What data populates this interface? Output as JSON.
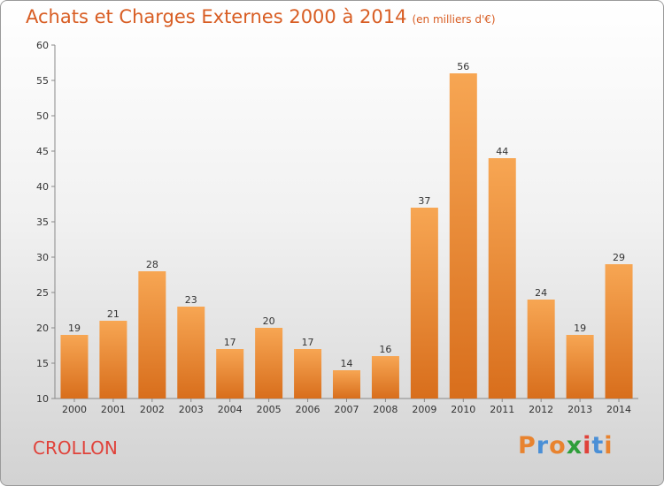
{
  "header": {
    "title": "Achats et Charges Externes 2000 à 2014",
    "unit": "(en milliers d'€)"
  },
  "footer": {
    "commune": "CROLLON",
    "logo": "Proxiti",
    "logo_colors": [
      "#e8832f",
      "#4a8fd6",
      "#e8832f",
      "#2e9e3a",
      "#e0423a",
      "#4a8fd6",
      "#e8832f"
    ]
  },
  "chart_data": {
    "type": "bar",
    "title": "Achats et Charges Externes 2000 à 2014",
    "subtitle": "(en milliers d'€)",
    "categories": [
      "2000",
      "2001",
      "2002",
      "2003",
      "2004",
      "2005",
      "2006",
      "2007",
      "2008",
      "2009",
      "2010",
      "2011",
      "2012",
      "2013",
      "2014"
    ],
    "values": [
      19,
      21,
      28,
      23,
      17,
      20,
      17,
      14,
      16,
      37,
      56,
      44,
      24,
      19,
      29
    ],
    "ylim": [
      10,
      60
    ],
    "yticks": [
      10,
      15,
      20,
      25,
      30,
      35,
      40,
      45,
      50,
      55,
      60
    ],
    "xlabel": "",
    "ylabel": "",
    "grid": false,
    "bar_color_top": "#f7a653",
    "bar_color_bottom": "#d86e1c"
  }
}
